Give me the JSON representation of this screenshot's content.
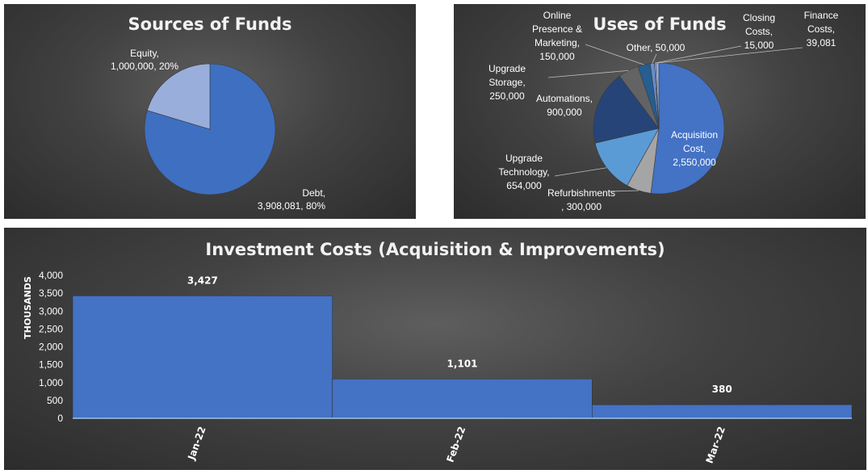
{
  "chart_data": [
    {
      "type": "pie",
      "title": "Sources of Funds",
      "slices": [
        {
          "name": "Debt",
          "value": 3908081,
          "label_lines": [
            "Debt,",
            "3,908,081, 80%"
          ],
          "color": "#3e6fc1"
        },
        {
          "name": "Equity",
          "value": 1000000,
          "label_lines": [
            "Equity,",
            "1,000,000, 20%"
          ],
          "color": "#9aaedb"
        }
      ]
    },
    {
      "type": "pie",
      "title": "Uses of Funds",
      "slices": [
        {
          "name": "Acquisition Cost",
          "value": 2550000,
          "label_lines": [
            "Acquisition",
            "Cost,",
            "2,550,000"
          ],
          "color": "#4472c4"
        },
        {
          "name": "Refurbishments",
          "value": 300000,
          "label_lines": [
            "Refurbishments",
            ", 300,000"
          ],
          "color": "#a5a5a5"
        },
        {
          "name": "Upgrade Technology",
          "value": 654000,
          "label_lines": [
            "Upgrade",
            "Technology,",
            "654,000"
          ],
          "color": "#5b9bd5"
        },
        {
          "name": "Automations",
          "value": 900000,
          "label_lines": [
            "Automations,",
            "900,000"
          ],
          "color": "#264478"
        },
        {
          "name": "Upgrade Storage",
          "value": 250000,
          "label_lines": [
            "Upgrade",
            "Storage,",
            "250,000"
          ],
          "color": "#636363"
        },
        {
          "name": "Online Presence & Marketing",
          "value": 150000,
          "label_lines": [
            "Online",
            "Presence &",
            "Marketing,",
            "150,000"
          ],
          "color": "#255e91"
        },
        {
          "name": "Other",
          "value": 50000,
          "label_lines": [
            "Other, 50,000"
          ],
          "color": "#698ed0"
        },
        {
          "name": "Closing Costs",
          "value": 15000,
          "label_lines": [
            "Closing",
            "Costs,",
            "15,000"
          ],
          "color": "#9dc3e6"
        },
        {
          "name": "Finance Costs",
          "value": 39081,
          "label_lines": [
            "Finance",
            "Costs,",
            "39,081"
          ],
          "color": "#8faadc"
        }
      ]
    },
    {
      "type": "bar",
      "title": "Investment Costs (Acquisition & Improvements)",
      "ylabel": "THOUSANDS",
      "categories": [
        "Jan-22",
        "Feb-22",
        "Mar-22"
      ],
      "values": [
        3427,
        1101,
        380
      ],
      "data_labels": [
        "3,427",
        "1,101",
        "380"
      ],
      "ylim": [
        0,
        4000
      ],
      "yticks": [
        0,
        500,
        1000,
        1500,
        2000,
        2500,
        3000,
        3500,
        4000
      ],
      "ytick_labels": [
        "0",
        "500",
        "1,000",
        "1,500",
        "2,000",
        "2,500",
        "3,000",
        "3,500",
        "4,000"
      ],
      "bar_color": "#4472c4",
      "grid": false
    }
  ]
}
